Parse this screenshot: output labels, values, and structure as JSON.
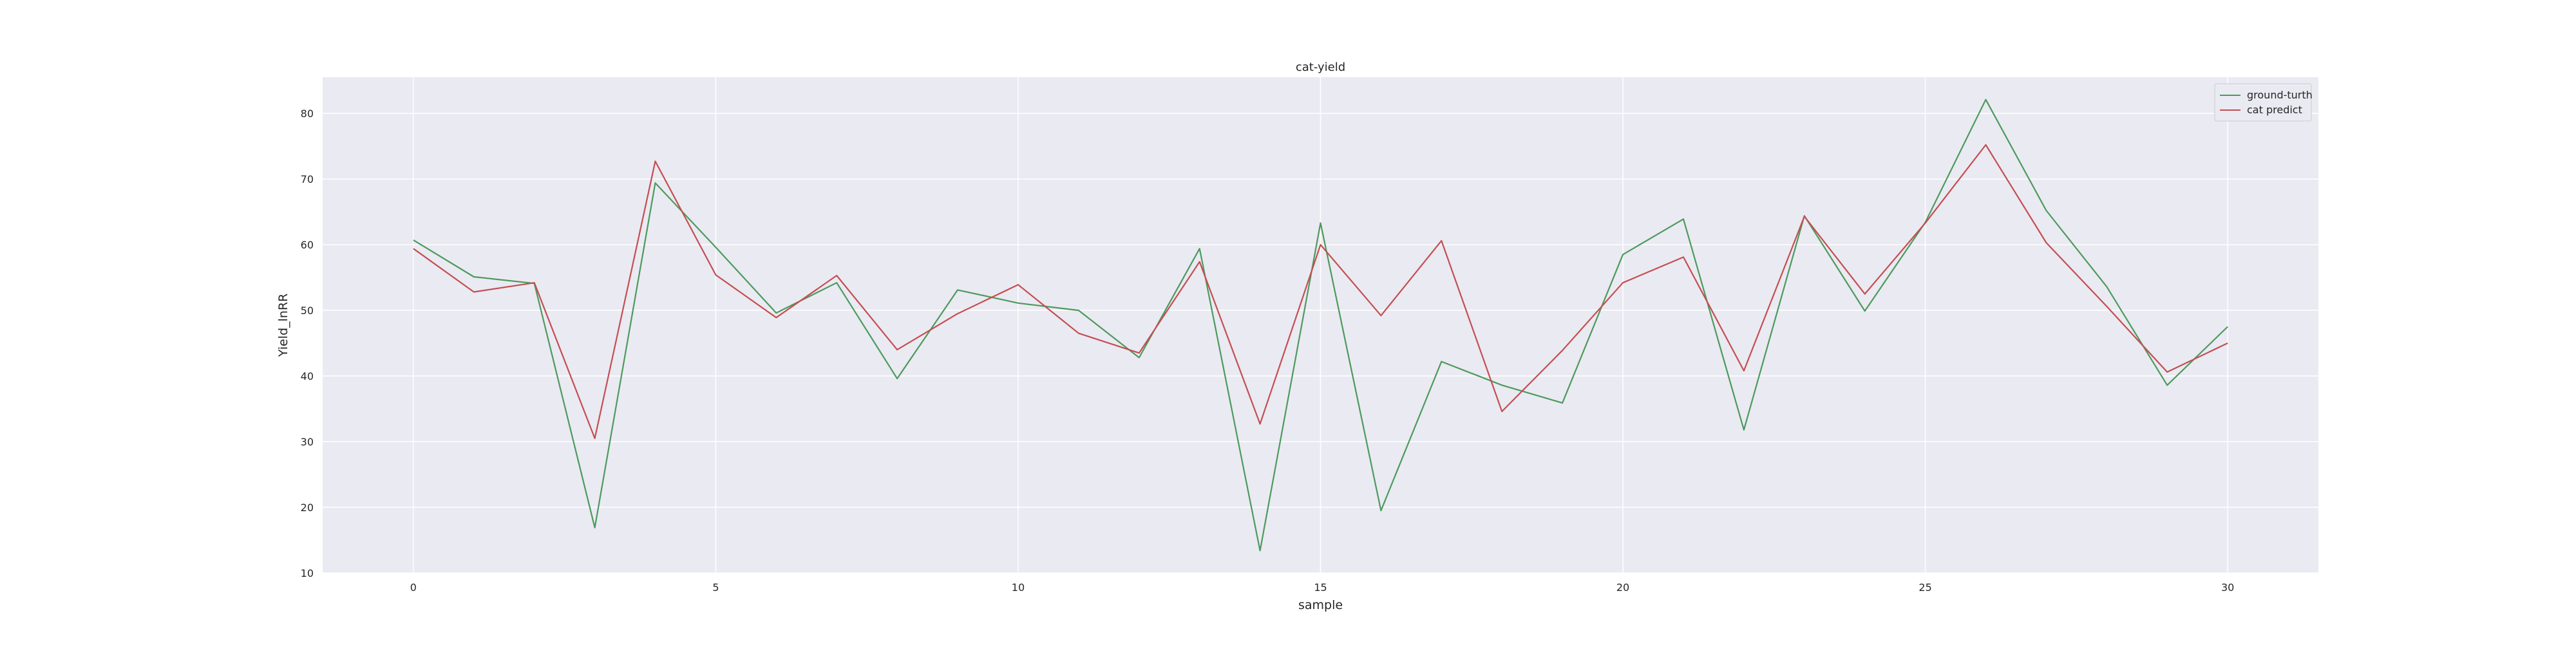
{
  "chart_data": {
    "type": "line",
    "title": "cat-yield",
    "xlabel": "sample",
    "ylabel": "Yield_lnRR",
    "xlim": [
      -1.5,
      31.5
    ],
    "ylim": [
      10,
      85.5
    ],
    "xticks": [
      0,
      5,
      10,
      15,
      20,
      25,
      30
    ],
    "yticks": [
      10,
      20,
      30,
      40,
      50,
      60,
      70,
      80
    ],
    "grid": true,
    "legend_position": "top-right",
    "x": [
      0,
      1,
      2,
      3,
      4,
      5,
      6,
      7,
      8,
      9,
      10,
      11,
      12,
      13,
      14,
      15,
      16,
      17,
      18,
      19,
      20,
      21,
      22,
      23,
      24,
      25,
      26,
      27,
      28,
      29,
      30
    ],
    "series": [
      {
        "name": "ground-turth",
        "color": "#4c9a5c",
        "values": [
          60.7,
          55.1,
          54.1,
          16.9,
          69.4,
          59.6,
          49.6,
          54.2,
          39.6,
          53.1,
          51.1,
          50.0,
          42.8,
          59.4,
          13.4,
          63.3,
          19.5,
          42.2,
          38.6,
          35.9,
          58.5,
          63.9,
          31.8,
          64.4,
          49.9,
          63.4,
          82.1,
          65.2,
          53.6,
          38.6,
          47.5
        ]
      },
      {
        "name": "cat predict",
        "color": "#c44e52",
        "values": [
          59.4,
          52.8,
          54.2,
          30.5,
          72.7,
          55.4,
          48.9,
          55.3,
          44.0,
          49.5,
          53.9,
          46.5,
          43.5,
          57.4,
          32.7,
          60.0,
          49.2,
          60.6,
          34.6,
          43.9,
          54.2,
          58.1,
          40.8,
          64.3,
          52.5,
          63.3,
          75.2,
          60.3,
          50.6,
          40.6,
          45.0
        ]
      }
    ]
  }
}
